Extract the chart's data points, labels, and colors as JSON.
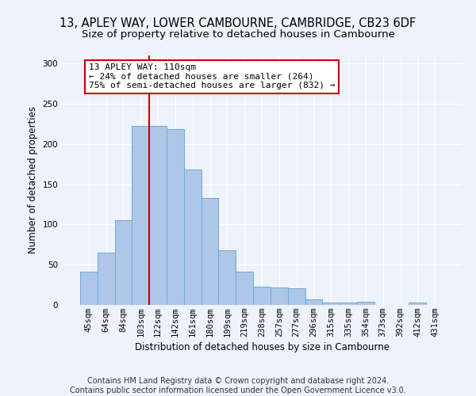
{
  "title_line1": "13, APLEY WAY, LOWER CAMBOURNE, CAMBRIDGE, CB23 6DF",
  "title_line2": "Size of property relative to detached houses in Cambourne",
  "xlabel": "Distribution of detached houses by size in Cambourne",
  "ylabel": "Number of detached properties",
  "footer_line1": "Contains HM Land Registry data © Crown copyright and database right 2024.",
  "footer_line2": "Contains public sector information licensed under the Open Government Licence v3.0.",
  "categories": [
    "45sqm",
    "64sqm",
    "84sqm",
    "103sqm",
    "122sqm",
    "142sqm",
    "161sqm",
    "180sqm",
    "199sqm",
    "219sqm",
    "238sqm",
    "257sqm",
    "277sqm",
    "296sqm",
    "315sqm",
    "335sqm",
    "354sqm",
    "373sqm",
    "392sqm",
    "412sqm",
    "431sqm"
  ],
  "values": [
    41,
    65,
    105,
    222,
    222,
    218,
    168,
    133,
    68,
    41,
    23,
    22,
    21,
    7,
    3,
    3,
    4,
    0,
    0,
    3,
    0
  ],
  "bar_color": "#aec6e8",
  "bar_edge_color": "#6aaad4",
  "vline_x": 3.5,
  "vline_color": "#cc0000",
  "annotation_text": "13 APLEY WAY: 110sqm\n← 24% of detached houses are smaller (264)\n75% of semi-detached houses are larger (832) →",
  "annotation_box_color": "#ffffff",
  "annotation_box_edge_color": "#cc0000",
  "ylim": [
    0,
    310
  ],
  "background_color": "#eef2fb",
  "grid_color": "#ffffff",
  "title_fontsize": 10.5,
  "subtitle_fontsize": 9.5,
  "axis_label_fontsize": 8.5,
  "tick_fontsize": 7.5,
  "footer_fontsize": 7.0,
  "annotation_fontsize": 8.0
}
